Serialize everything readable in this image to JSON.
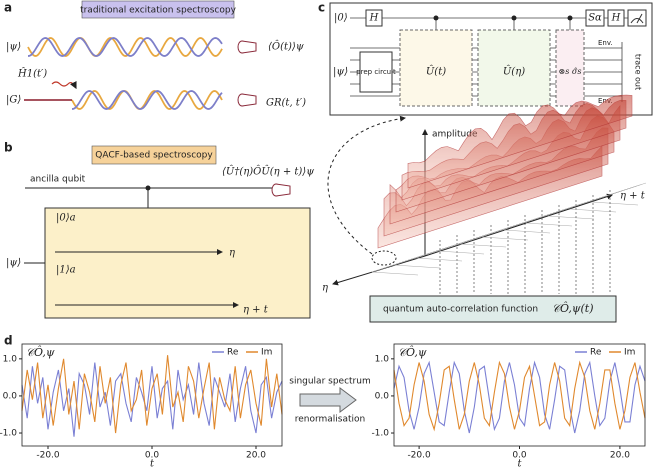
{
  "panels": {
    "a": {
      "label": "a",
      "title": "traditional excitation spectroscopy",
      "psi": "|ψ⟩",
      "expect": "⟨Ô(t)⟩ψ",
      "hamiltonian": "Ĥ1(t′)",
      "ground": "|G⟩",
      "green": "GR(t, t′)"
    },
    "b": {
      "label": "b",
      "title": "QACF-based spectroscopy",
      "ancilla": "ancilla qubit",
      "formula": "⟨Û†(η)ÔÛ(η + t)⟩ψ",
      "psi": "|ψ⟩",
      "zero": "|0⟩a",
      "eta": "η",
      "one": "|1⟩a",
      "eta_t": "η + t"
    },
    "c": {
      "label": "c",
      "zero": "|0⟩",
      "psi": "|ψ⟩",
      "h1": "H",
      "prep": "prep circuit",
      "ut": "Û(t)",
      "ueta": "Û(η)",
      "sigma": "⊗s σ̂s",
      "salpha": "Sα",
      "h2": "H",
      "env1": "Env.",
      "env2": "Env.",
      "trace": "trace out",
      "amplitude": "amplitude",
      "eta_t": "η + t",
      "eta": "η",
      "qacf": "quantum auto-correlation function",
      "qacf_sym": "𝒞Ô,ψ(t)"
    },
    "d": {
      "label": "d",
      "arrow_top": "singular spectrum",
      "arrow_bottom": "renormalisation"
    }
  },
  "chart_data": [
    {
      "type": "line",
      "title": "𝒞Ô,ψ",
      "xlabel": "t",
      "legend": "upper right",
      "x": [
        -25,
        -24,
        -23,
        -22,
        -21,
        -20,
        -19,
        -18,
        -17,
        -16,
        -15,
        -14,
        -13,
        -12,
        -11,
        -10,
        -9,
        -8,
        -7,
        -6,
        -5,
        -4,
        -3,
        -2,
        -1,
        0,
        1,
        2,
        3,
        4,
        5,
        6,
        7,
        8,
        9,
        10,
        11,
        12,
        13,
        14,
        15,
        16,
        17,
        18,
        19,
        20,
        21,
        22,
        23,
        24,
        25
      ],
      "series": [
        {
          "name": "Re",
          "color": "#7b80d4",
          "values": [
            0.3,
            -0.6,
            0.8,
            -0.2,
            0.5,
            -0.9,
            0.1,
            0.7,
            -0.4,
            0.2,
            -1.1,
            0.6,
            0.3,
            -0.5,
            0.9,
            -0.3,
            0.1,
            -0.8,
            0.4,
            0.6,
            -0.2,
            -0.7,
            0.5,
            0.1,
            -0.4,
            0.8,
            -0.6,
            0.2,
            0.4,
            -0.9,
            0.7,
            -0.1,
            0.3,
            -0.5,
            0.9,
            -0.2,
            -0.8,
            0.5,
            0.1,
            -0.3,
            0.6,
            -0.7,
            0.2,
            0.8,
            -0.4,
            -1.0,
            0.3,
            0.5,
            -0.6,
            0.1,
            0.4
          ]
        },
        {
          "name": "Im",
          "color": "#e0892e",
          "values": [
            -0.4,
            0.7,
            -0.1,
            0.9,
            -0.6,
            0.3,
            -0.8,
            0.2,
            1.0,
            -0.5,
            0.4,
            -0.9,
            0.6,
            0.1,
            -0.7,
            0.8,
            -0.2,
            0.5,
            -1.0,
            0.3,
            0.9,
            -0.4,
            -0.1,
            0.7,
            -0.8,
            0.2,
            0.6,
            -0.5,
            1.1,
            -0.3,
            0.1,
            -0.7,
            0.8,
            0.4,
            -0.6,
            0.2,
            0.9,
            -0.9,
            0.5,
            -0.1,
            -0.4,
            0.8,
            -0.6,
            0.3,
            0.7,
            -0.2,
            -0.8,
            1.0,
            -0.3,
            0.6,
            -0.5
          ]
        }
      ],
      "xlim": [
        -25,
        25
      ],
      "xticks": [
        {
          "value": -20,
          "label": "-20.0"
        },
        {
          "value": 0,
          "label": "0.0"
        },
        {
          "value": 20,
          "label": "20.0"
        }
      ],
      "ylim": [
        -1.35,
        1.4
      ],
      "yticks": [
        {
          "value": 1,
          "label": "1.0"
        },
        {
          "value": 0,
          "label": "0.0"
        },
        {
          "value": -1,
          "label": "-1.0"
        }
      ]
    },
    {
      "type": "line",
      "title": "𝒞Ô,ψ",
      "xlabel": "t",
      "legend": "upper right",
      "x": [
        -25,
        -24,
        -23,
        -22,
        -21,
        -20,
        -19,
        -18,
        -17,
        -16,
        -15,
        -14,
        -13,
        -12,
        -11,
        -10,
        -9,
        -8,
        -7,
        -6,
        -5,
        -4,
        -3,
        -2,
        -1,
        0,
        1,
        2,
        3,
        4,
        5,
        6,
        7,
        8,
        9,
        10,
        11,
        12,
        13,
        14,
        15,
        16,
        17,
        18,
        19,
        20,
        21,
        22,
        23,
        24,
        25
      ],
      "series": [
        {
          "name": "Re",
          "color": "#7b80d4",
          "values": [
            0.2,
            0.8,
            0.5,
            -0.4,
            -0.9,
            -0.3,
            0.6,
            0.9,
            0.1,
            -0.7,
            -0.8,
            0.1,
            0.9,
            0.6,
            -0.4,
            -1.0,
            -0.3,
            0.7,
            0.8,
            -0.1,
            -0.9,
            -0.6,
            0.4,
            0.9,
            0.3,
            -0.6,
            -0.8,
            0.2,
            0.9,
            0.5,
            -0.5,
            -0.9,
            -0.1,
            0.8,
            0.7,
            -0.3,
            -1.0,
            -0.4,
            0.6,
            0.9,
            0.0,
            -0.8,
            -0.6,
            0.4,
            0.9,
            0.2,
            -0.7,
            -0.7,
            0.3,
            0.8,
            0.4
          ]
        },
        {
          "name": "Im",
          "color": "#e0892e",
          "values": [
            0.7,
            -0.2,
            -0.8,
            -0.6,
            0.3,
            0.9,
            0.4,
            -0.5,
            -0.9,
            -0.2,
            0.7,
            0.8,
            -0.1,
            -0.9,
            -0.5,
            0.4,
            0.9,
            0.3,
            -0.6,
            -0.8,
            0.1,
            0.9,
            0.6,
            -0.3,
            -0.9,
            -0.4,
            0.5,
            0.8,
            0.0,
            -0.8,
            -0.7,
            0.3,
            0.9,
            0.4,
            -0.6,
            -0.8,
            0.2,
            0.9,
            0.5,
            -0.4,
            -0.9,
            -0.2,
            0.7,
            0.7,
            -0.2,
            -0.9,
            -0.4,
            0.5,
            0.9,
            0.1,
            -0.6
          ]
        }
      ],
      "xlim": [
        -25,
        25
      ],
      "xticks": [
        {
          "value": -20,
          "label": "-20.0"
        },
        {
          "value": 0,
          "label": "0.0"
        },
        {
          "value": 20,
          "label": "20.0"
        }
      ],
      "ylim": [
        -1.35,
        1.4
      ],
      "yticks": [
        {
          "value": 1,
          "label": "1.0"
        },
        {
          "value": 0,
          "label": "0.0"
        },
        {
          "value": -1,
          "label": "-1.0"
        }
      ]
    }
  ]
}
